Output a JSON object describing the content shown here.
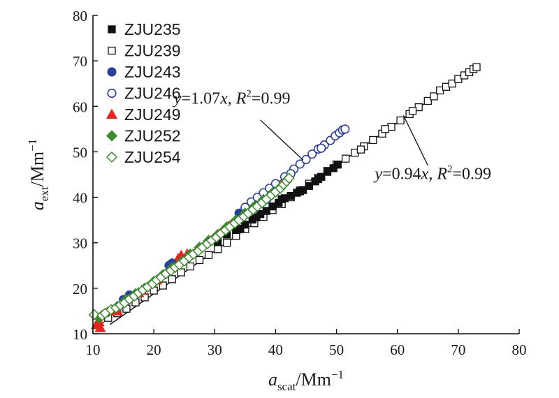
{
  "chart_data": {
    "type": "scatter",
    "x_axis": {
      "label_main": "a",
      "label_sub": "scat",
      "label_unit": "/Mm",
      "label_exp": "−1",
      "range": [
        10,
        80
      ],
      "ticks": [
        10,
        20,
        30,
        40,
        50,
        60,
        70,
        80
      ]
    },
    "y_axis": {
      "label_main": "a",
      "label_sub": "ext",
      "label_unit": "/Mm",
      "label_exp": "−1",
      "range": [
        10,
        80
      ],
      "ticks": [
        10,
        20,
        30,
        40,
        50,
        60,
        70,
        80
      ]
    },
    "grid": false,
    "legend_position": "top-left",
    "series": [
      {
        "name": "ZJU235",
        "marker": "square",
        "filled": true,
        "color": "#111111",
        "points": [
          [
            30.5,
            30.2
          ],
          [
            32.0,
            31.8
          ],
          [
            33.5,
            32.8
          ],
          [
            35.0,
            34.0
          ],
          [
            36.2,
            35.1
          ],
          [
            37.5,
            36.3
          ],
          [
            38.5,
            37.0
          ],
          [
            39.5,
            38.0
          ],
          [
            40.5,
            38.8
          ],
          [
            41.5,
            39.8
          ],
          [
            42.5,
            40.3
          ],
          [
            43.5,
            41.0
          ],
          [
            44.5,
            41.6
          ],
          [
            45.5,
            42.5
          ],
          [
            46.5,
            43.5
          ],
          [
            47.5,
            44.5
          ],
          [
            48.5,
            45.6
          ],
          [
            49.5,
            46.4
          ],
          [
            50.2,
            47.2
          ],
          [
            34.2,
            33.1
          ],
          [
            36.8,
            35.6
          ],
          [
            41.0,
            39.6
          ],
          [
            44.0,
            41.3
          ],
          [
            47.0,
            44.0
          ]
        ]
      },
      {
        "name": "ZJU239",
        "marker": "square",
        "filled": false,
        "color": "#111111",
        "points": [
          [
            12.5,
            13.5
          ],
          [
            14.0,
            14.5
          ],
          [
            15.5,
            15.5
          ],
          [
            17.0,
            16.9
          ],
          [
            18.5,
            18.0
          ],
          [
            20.0,
            19.5
          ],
          [
            21.5,
            20.6
          ],
          [
            23.0,
            22.0
          ],
          [
            24.5,
            23.5
          ],
          [
            26.0,
            24.8
          ],
          [
            27.5,
            26.2
          ],
          [
            29.0,
            27.3
          ],
          [
            30.5,
            28.6
          ],
          [
            32.0,
            30.0
          ],
          [
            33.5,
            31.5
          ],
          [
            35.0,
            33.0
          ],
          [
            36.5,
            34.3
          ],
          [
            38.0,
            35.7
          ],
          [
            39.5,
            37.2
          ],
          [
            41.0,
            38.5
          ],
          [
            42.5,
            40.0
          ],
          [
            44.0,
            41.5
          ],
          [
            45.5,
            43.0
          ],
          [
            47.0,
            44.3
          ],
          [
            48.5,
            45.8
          ],
          [
            50.0,
            47.2
          ],
          [
            51.5,
            48.5
          ],
          [
            53.0,
            49.8
          ],
          [
            54.5,
            51.2
          ],
          [
            56.0,
            52.6
          ],
          [
            57.5,
            54.0
          ],
          [
            59.0,
            55.5
          ],
          [
            60.5,
            56.9
          ],
          [
            62.0,
            58.3
          ],
          [
            63.5,
            59.8
          ],
          [
            65.0,
            61.2
          ],
          [
            66.0,
            62.2
          ],
          [
            67.0,
            63.5
          ],
          [
            68.0,
            64.3
          ],
          [
            69.0,
            65.0
          ],
          [
            70.0,
            66.0
          ],
          [
            71.0,
            66.8
          ],
          [
            71.8,
            67.5
          ],
          [
            72.5,
            68.2
          ],
          [
            73.0,
            68.6
          ],
          [
            54.0,
            50.5
          ],
          [
            58.0,
            55.0
          ],
          [
            62.5,
            59.0
          ]
        ]
      },
      {
        "name": "ZJU243",
        "marker": "circle",
        "filled": true,
        "color": "#2b3f9e",
        "points": [
          [
            15.0,
            17.5
          ],
          [
            16.0,
            18.5
          ],
          [
            22.5,
            25.0
          ],
          [
            23.0,
            25.5
          ],
          [
            34.0,
            36.5
          ],
          [
            35.0,
            37.5
          ],
          [
            38.5,
            39.5
          ],
          [
            39.0,
            40.2
          ]
        ]
      },
      {
        "name": "ZJU246",
        "marker": "circle",
        "filled": false,
        "color": "#2b3f9e",
        "points": [
          [
            35.0,
            37.8
          ],
          [
            36.0,
            39.0
          ],
          [
            37.0,
            40.0
          ],
          [
            38.0,
            41.0
          ],
          [
            39.0,
            42.0
          ],
          [
            40.0,
            43.0
          ],
          [
            41.5,
            44.5
          ],
          [
            43.0,
            46.2
          ],
          [
            44.0,
            47.3
          ],
          [
            45.0,
            48.3
          ],
          [
            46.0,
            49.5
          ],
          [
            47.0,
            50.6
          ],
          [
            48.0,
            51.5
          ],
          [
            49.0,
            52.5
          ],
          [
            49.8,
            53.5
          ],
          [
            50.5,
            54.2
          ],
          [
            51.0,
            54.8
          ],
          [
            51.4,
            55.0
          ],
          [
            42.5,
            45.2
          ],
          [
            47.5,
            50.8
          ]
        ]
      },
      {
        "name": "ZJU249",
        "marker": "triangle",
        "filled": true,
        "color": "#e8231f",
        "points": [
          [
            10.6,
            12.0
          ],
          [
            11.2,
            11.3
          ],
          [
            11.0,
            12.6
          ],
          [
            14.0,
            15.0
          ],
          [
            17.5,
            19.0
          ],
          [
            18.0,
            19.5
          ],
          [
            20.5,
            21.8
          ],
          [
            23.0,
            25.5
          ],
          [
            24.0,
            26.5
          ],
          [
            24.5,
            27.2
          ],
          [
            25.5,
            27.5
          ]
        ]
      },
      {
        "name": "ZJU252",
        "marker": "diamond",
        "filled": true,
        "color": "#3b8a2e",
        "points": [
          [
            11.0,
            13.5
          ],
          [
            12.5,
            14.8
          ],
          [
            14.0,
            16.0
          ],
          [
            15.5,
            17.5
          ],
          [
            17.0,
            18.8
          ],
          [
            18.5,
            20.0
          ],
          [
            20.0,
            21.5
          ],
          [
            21.5,
            23.0
          ],
          [
            23.0,
            24.5
          ],
          [
            24.5,
            25.8
          ],
          [
            26.0,
            27.5
          ],
          [
            27.5,
            29.0
          ],
          [
            29.0,
            30.5
          ],
          [
            30.5,
            31.8
          ],
          [
            32.0,
            33.5
          ],
          [
            33.5,
            35.0
          ],
          [
            35.0,
            36.5
          ],
          [
            36.5,
            38.0
          ],
          [
            38.0,
            39.5
          ],
          [
            39.5,
            41.0
          ],
          [
            41.0,
            42.5
          ],
          [
            42.0,
            44.0
          ]
        ]
      },
      {
        "name": "ZJU254",
        "marker": "diamond",
        "filled": false,
        "color": "#3b8a2e",
        "points": [
          [
            10.2,
            14.2
          ],
          [
            11.5,
            14.0
          ],
          [
            12.0,
            14.5
          ],
          [
            13.0,
            15.3
          ],
          [
            13.8,
            15.7
          ],
          [
            14.5,
            16.3
          ],
          [
            15.2,
            16.8
          ],
          [
            16.0,
            17.6
          ],
          [
            16.8,
            18.3
          ],
          [
            17.5,
            19.0
          ],
          [
            18.2,
            19.6
          ],
          [
            19.0,
            20.3
          ],
          [
            19.8,
            21.0
          ],
          [
            20.5,
            21.8
          ],
          [
            21.2,
            22.4
          ],
          [
            22.0,
            23.2
          ],
          [
            22.8,
            23.9
          ],
          [
            23.5,
            24.6
          ],
          [
            24.2,
            25.2
          ],
          [
            25.0,
            26.0
          ],
          [
            25.8,
            26.8
          ],
          [
            26.5,
            27.5
          ],
          [
            27.3,
            28.2
          ],
          [
            28.0,
            29.0
          ],
          [
            28.8,
            29.8
          ],
          [
            29.5,
            30.5
          ],
          [
            30.3,
            31.2
          ],
          [
            31.0,
            32.0
          ],
          [
            31.8,
            32.8
          ],
          [
            32.5,
            33.5
          ],
          [
            33.3,
            34.3
          ],
          [
            34.0,
            35.0
          ],
          [
            34.8,
            35.8
          ],
          [
            35.5,
            36.5
          ],
          [
            36.3,
            37.3
          ],
          [
            37.0,
            38.0
          ],
          [
            37.8,
            38.8
          ],
          [
            38.5,
            39.6
          ],
          [
            39.3,
            40.5
          ],
          [
            40.0,
            41.2
          ],
          [
            40.8,
            42.0
          ],
          [
            41.3,
            42.8
          ],
          [
            41.8,
            43.5
          ],
          [
            42.2,
            44.2
          ]
        ]
      }
    ],
    "fits": [
      {
        "slope": 1.07,
        "x_from": 10.5,
        "x_to": 51.5,
        "color": "#e8231f",
        "eq_y": "y",
        "eq_val": "=1.07",
        "eq_x": "x",
        "eq_sep": ", ",
        "eq_r": "R",
        "eq_exp": "2",
        "eq_r2": "=0.99",
        "label_x": 23.3,
        "label_y": 60.6,
        "leader_from": [
          37.5,
          57.0
        ],
        "leader_to": [
          44.5,
          48.2
        ]
      },
      {
        "slope": 0.94,
        "x_from": 12.8,
        "x_to": 73.5,
        "color": "#111111",
        "eq_y": "y",
        "eq_val": "=0.94",
        "eq_x": "x",
        "eq_sep": ", ",
        "eq_r": "R",
        "eq_exp": "2",
        "eq_r2": "=0.99",
        "label_x": 56.3,
        "label_y": 44.0,
        "leader_from": [
          65.0,
          47.0
        ],
        "leader_to": [
          61.0,
          58.0
        ]
      }
    ]
  }
}
